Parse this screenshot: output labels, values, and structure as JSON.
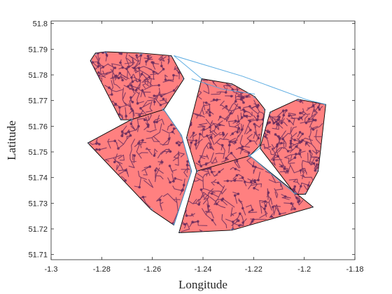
{
  "chart_data": {
    "type": "scatter",
    "title": "",
    "xlabel": "Longitude",
    "ylabel": "Latitude",
    "xlim": [
      -1.3,
      -1.18
    ],
    "ylim": [
      51.708,
      51.801
    ],
    "grid": false,
    "legend": "none",
    "x_ticks": [
      -1.3,
      -1.28,
      -1.26,
      -1.24,
      -1.22,
      -1.2,
      -1.18
    ],
    "x_tick_labels": [
      "-1.3",
      "-1.28",
      "-1.26",
      "-1.24",
      "-1.22",
      "-1.2",
      "-1.18"
    ],
    "y_ticks": [
      51.71,
      51.72,
      51.73,
      51.74,
      51.75,
      51.76,
      51.77,
      51.78,
      51.79,
      51.8
    ],
    "y_tick_labels": [
      "51.71",
      "51.72",
      "51.73",
      "51.74",
      "51.75",
      "51.76",
      "51.77",
      "51.78",
      "51.79",
      "51.8"
    ],
    "colors": {
      "region_fill": "#ff8080",
      "region_edge": "#000000",
      "network": "#6e2f5e",
      "network_edge": "#4aa3df",
      "axis": "#262626"
    },
    "regions": [
      {
        "vertices": [
          [
            -1.2845,
            51.7855
          ],
          [
            -1.2825,
            51.7885
          ],
          [
            -1.2785,
            51.789
          ],
          [
            -1.2645,
            51.7885
          ],
          [
            -1.2525,
            51.7875
          ],
          [
            -1.2475,
            51.7785
          ],
          [
            -1.2555,
            51.7665
          ],
          [
            -1.2685,
            51.7625
          ],
          [
            -1.2725,
            51.7625
          ]
        ]
      },
      {
        "vertices": [
          [
            -1.2855,
            51.7535
          ],
          [
            -1.2685,
            51.7625
          ],
          [
            -1.2555,
            51.7665
          ],
          [
            -1.2485,
            51.7565
          ],
          [
            -1.2445,
            51.7425
          ],
          [
            -1.2515,
            51.7215
          ],
          [
            -1.2605,
            51.7275
          ]
        ]
      },
      {
        "vertices": [
          [
            -1.2405,
            51.7785
          ],
          [
            -1.2285,
            51.7765
          ],
          [
            -1.2195,
            51.7715
          ],
          [
            -1.2155,
            51.7665
          ],
          [
            -1.2175,
            51.7525
          ],
          [
            -1.2215,
            51.7485
          ],
          [
            -1.2425,
            51.7425
          ],
          [
            -1.2465,
            51.7555
          ]
        ]
      },
      {
        "vertices": [
          [
            -1.2425,
            51.7425
          ],
          [
            -1.2215,
            51.7485
          ],
          [
            -1.1965,
            51.7285
          ],
          [
            -1.2285,
            51.7195
          ],
          [
            -1.2495,
            51.7185
          ]
        ]
      },
      {
        "vertices": [
          [
            -1.2135,
            51.7655
          ],
          [
            -1.2025,
            51.7705
          ],
          [
            -1.1915,
            51.7685
          ],
          [
            -1.1945,
            51.7425
          ],
          [
            -1.1995,
            51.7335
          ],
          [
            -1.2035,
            51.7335
          ],
          [
            -1.2175,
            51.7515
          ]
        ]
      }
    ],
    "edges": [
      [
        [
          -1.2515,
          51.7875
        ],
        [
          -1.2245,
          51.7795
        ],
        [
          -1.1995,
          51.7705
        ],
        [
          -1.1915,
          51.7685
        ]
      ],
      [
        [
          -1.2445,
          51.7785
        ],
        [
          -1.2325,
          51.7745
        ],
        [
          -1.2195,
          51.7725
        ]
      ],
      [
        [
          -1.2515,
          51.7875
        ],
        [
          -1.2405,
          51.7785
        ]
      ],
      [
        [
          -1.2555,
          51.7665
        ],
        [
          -1.2485,
          51.7565
        ],
        [
          -1.2445,
          51.7425
        ],
        [
          -1.2515,
          51.7215
        ]
      ],
      [
        [
          -1.2175,
          51.7515
        ],
        [
          -1.2215,
          51.7485
        ],
        [
          -1.2035,
          51.7335
        ]
      ]
    ]
  }
}
